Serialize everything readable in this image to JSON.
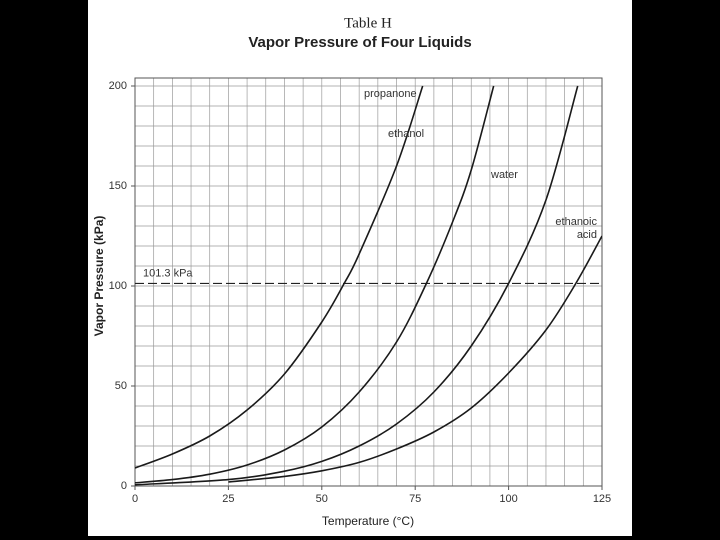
{
  "chart_data": {
    "type": "line",
    "supertitle": "Table H",
    "title": "Vapor Pressure of Four Liquids",
    "x_label": "Temperature (°C)",
    "y_label": "Vapor Pressure (kPa)",
    "xlim": [
      0,
      125
    ],
    "ylim": [
      0,
      204
    ],
    "xticks": [
      0,
      25,
      50,
      75,
      100,
      125
    ],
    "yticks": [
      0,
      50,
      100,
      150,
      200
    ],
    "x_grid": [
      0,
      5,
      10,
      15,
      20,
      25,
      30,
      35,
      40,
      45,
      50,
      55,
      60,
      65,
      70,
      75,
      80,
      85,
      90,
      95,
      100,
      105,
      110,
      115,
      120,
      125
    ],
    "y_grid": [
      0,
      10,
      20,
      30,
      40,
      50,
      60,
      70,
      80,
      90,
      100,
      110,
      120,
      130,
      140,
      150,
      160,
      170,
      180,
      190,
      200
    ],
    "reference_line": {
      "value": 101.3,
      "label": "101.3 kPa"
    },
    "series": [
      {
        "name": "propanone",
        "color": "#1a1a1a",
        "x": [
          0,
          10,
          20,
          30,
          40,
          50,
          56,
          60,
          70,
          77
        ],
        "values": [
          9,
          16,
          25,
          38,
          56,
          82,
          101.3,
          116,
          160,
          200
        ]
      },
      {
        "name": "ethanol",
        "color": "#1a1a1a",
        "x": [
          0,
          10,
          20,
          30,
          40,
          50,
          60,
          70,
          78,
          85,
          90,
          96
        ],
        "values": [
          1.6,
          3.2,
          5.9,
          10.5,
          18,
          29.5,
          47,
          72,
          101.3,
          132,
          158,
          200
        ]
      },
      {
        "name": "water",
        "color": "#1a1a1a",
        "x": [
          0,
          25,
          40,
          50,
          60,
          70,
          80,
          90,
          100,
          110,
          118.5
        ],
        "values": [
          0.6,
          3.2,
          7.4,
          12.3,
          20,
          31,
          47,
          70,
          101.3,
          143,
          200
        ]
      },
      {
        "name": "ethanoic acid",
        "color": "#1a1a1a",
        "x": [
          25,
          40,
          50,
          60,
          70,
          80,
          90,
          100,
          110,
          118,
          125
        ],
        "values": [
          2,
          4.8,
          7.6,
          11.8,
          18.5,
          27,
          39,
          56.5,
          78,
          101.3,
          125
        ]
      }
    ]
  }
}
